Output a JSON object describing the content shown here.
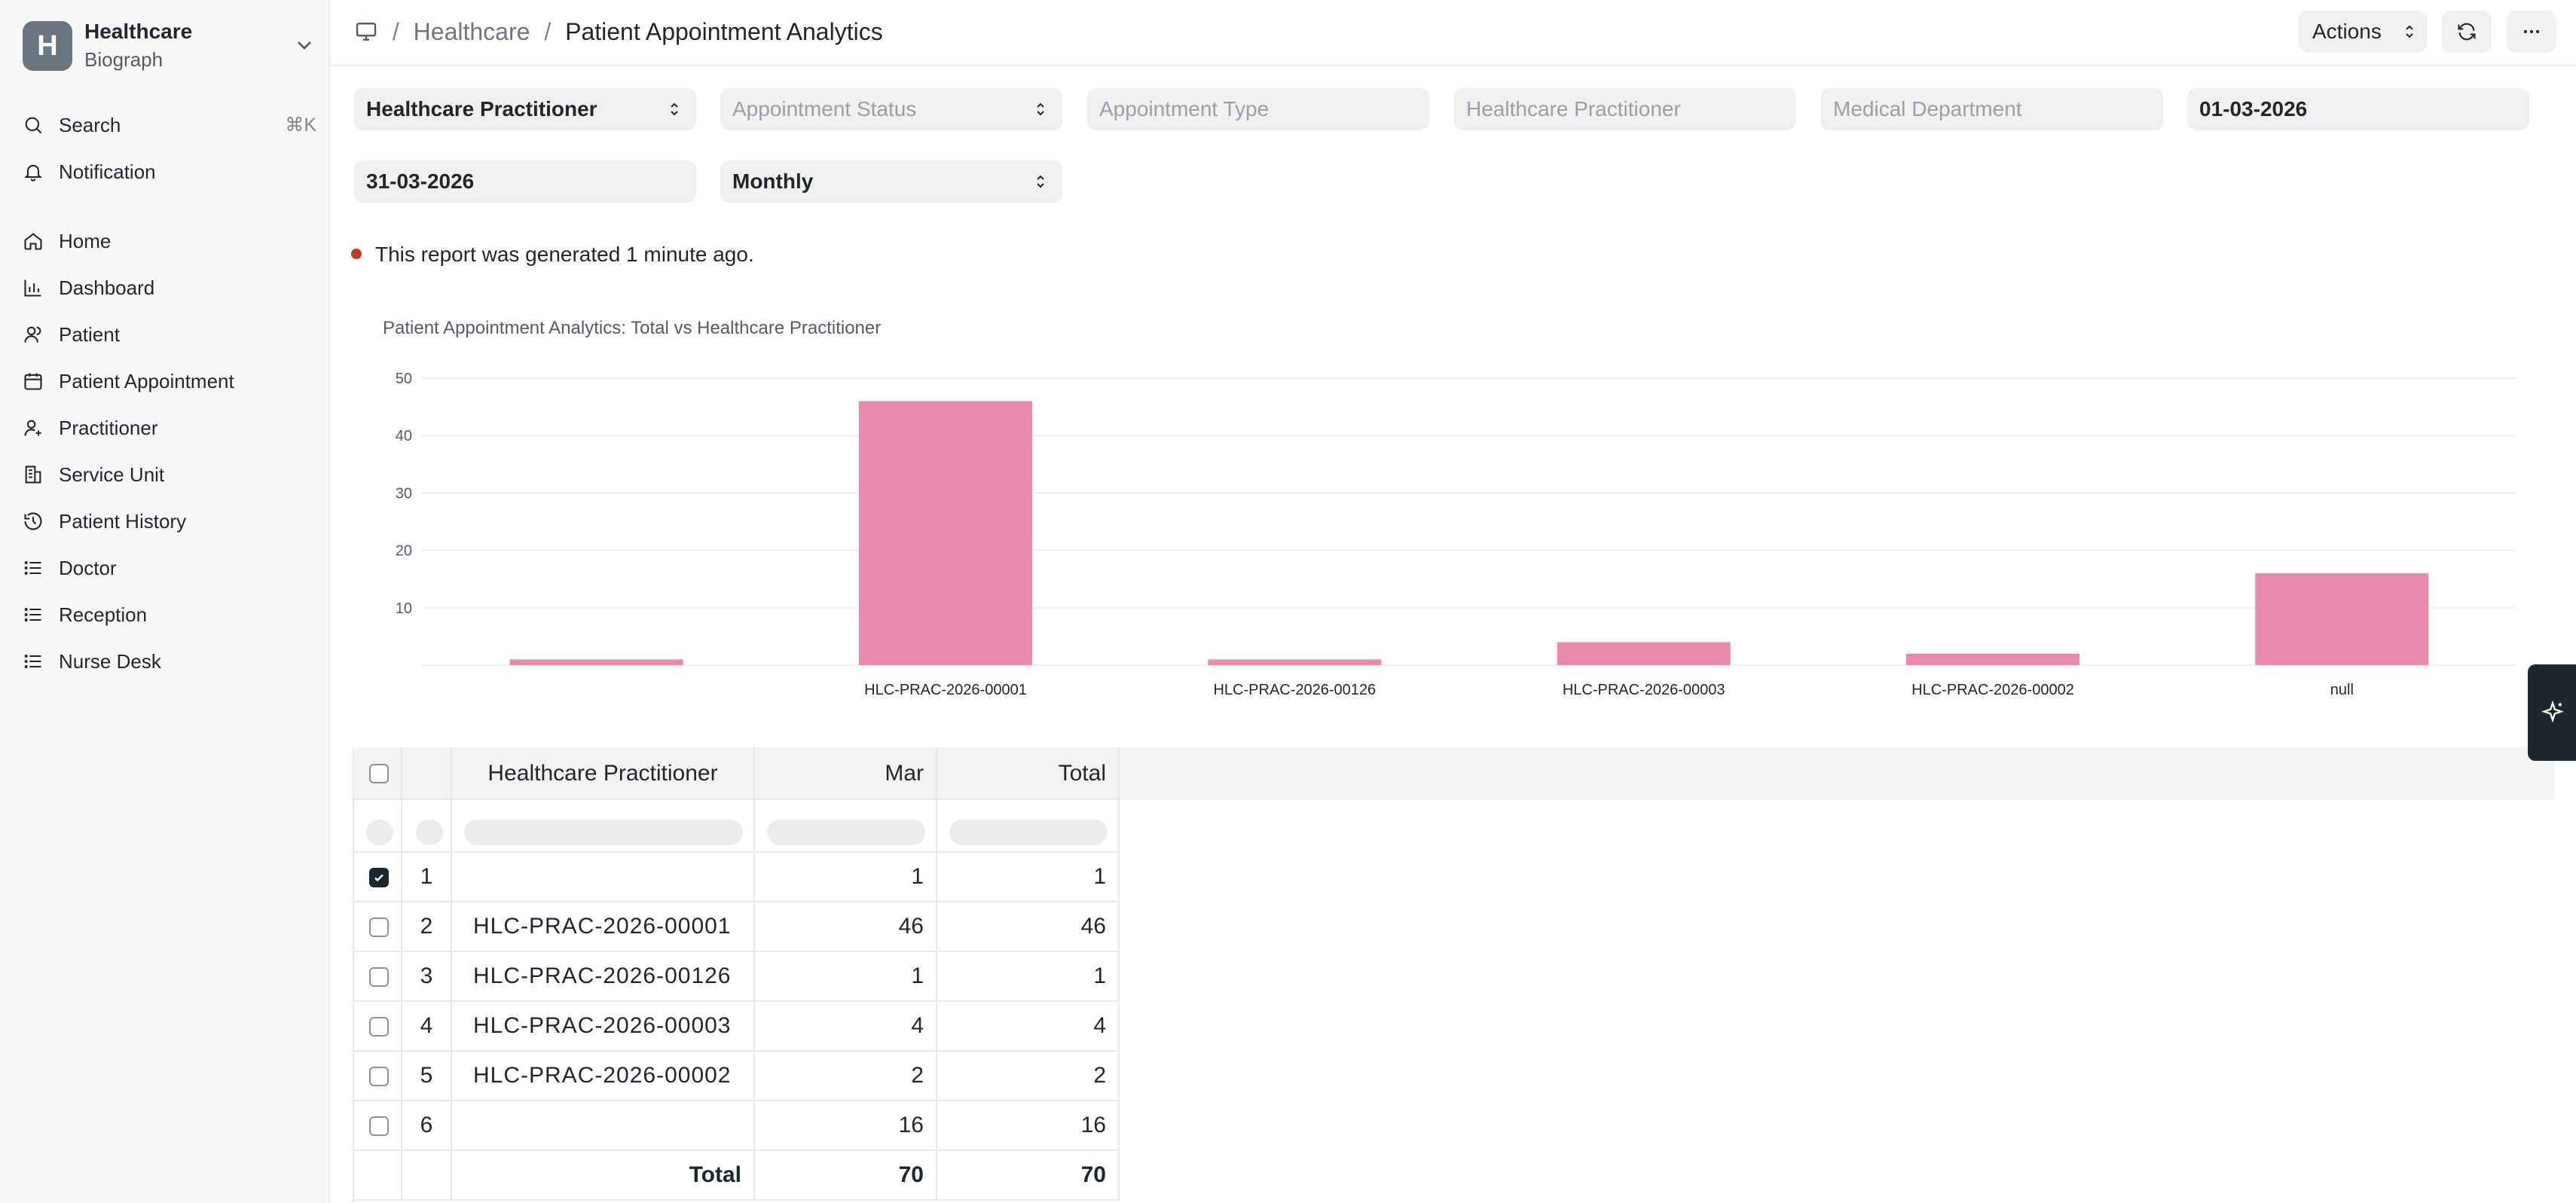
{
  "sidebar": {
    "brand_letter": "H",
    "brand_title": "Healthcare",
    "brand_subtitle": "Biograph",
    "search_label": "Search",
    "search_shortcut": "⌘K",
    "notification_label": "Notification",
    "items": [
      {
        "label": "Home",
        "icon": "home-icon"
      },
      {
        "label": "Dashboard",
        "icon": "chart-icon"
      },
      {
        "label": "Patient",
        "icon": "users-icon"
      },
      {
        "label": "Patient Appointment",
        "icon": "calendar-icon"
      },
      {
        "label": "Practitioner",
        "icon": "user-plus-icon"
      },
      {
        "label": "Service Unit",
        "icon": "building-icon"
      },
      {
        "label": "Patient History",
        "icon": "history-icon"
      },
      {
        "label": "Doctor",
        "icon": "list-icon"
      },
      {
        "label": "Reception",
        "icon": "list-icon"
      },
      {
        "label": "Nurse Desk",
        "icon": "list-icon"
      }
    ]
  },
  "header": {
    "breadcrumb_parent": "Healthcare",
    "breadcrumb_current": "Patient Appointment Analytics",
    "actions_label": "Actions"
  },
  "filters": {
    "group_by": "Healthcare Practitioner",
    "appointment_status_placeholder": "Appointment Status",
    "appointment_type_placeholder": "Appointment Type",
    "practitioner_placeholder": "Healthcare Practitioner",
    "department_placeholder": "Medical Department",
    "from_date": "01-03-2026",
    "to_date": "31-03-2026",
    "range": "Monthly"
  },
  "status_text": "This report was generated 1 minute ago.",
  "colors": {
    "bar": "#e78aae",
    "status_dot": "#c0392b"
  },
  "chart_data": {
    "type": "bar",
    "title": "Patient Appointment Analytics: Total vs Healthcare Practitioner",
    "categories": [
      "",
      "HLC-PRAC-2026-00001",
      "HLC-PRAC-2026-00126",
      "HLC-PRAC-2026-00003",
      "HLC-PRAC-2026-00002",
      "null"
    ],
    "values": [
      1,
      46,
      1,
      4,
      2,
      16
    ],
    "yticks": [
      10,
      20,
      30,
      40,
      50
    ],
    "ylim": [
      0,
      50
    ],
    "grid": true
  },
  "table": {
    "columns": [
      "Healthcare Practitioner",
      "Mar",
      "Total"
    ],
    "rows": [
      {
        "idx": "1",
        "practitioner": "",
        "mar": "1",
        "total": "1",
        "checked": true
      },
      {
        "idx": "2",
        "practitioner": "HLC-PRAC-2026-00001",
        "mar": "46",
        "total": "46",
        "checked": false
      },
      {
        "idx": "3",
        "practitioner": "HLC-PRAC-2026-00126",
        "mar": "1",
        "total": "1",
        "checked": false
      },
      {
        "idx": "4",
        "practitioner": "HLC-PRAC-2026-00003",
        "mar": "4",
        "total": "4",
        "checked": false
      },
      {
        "idx": "5",
        "practitioner": "HLC-PRAC-2026-00002",
        "mar": "2",
        "total": "2",
        "checked": false
      },
      {
        "idx": "6",
        "practitioner": "",
        "mar": "16",
        "total": "16",
        "checked": false
      }
    ],
    "total_label": "Total",
    "total_mar": "70",
    "total_total": "70"
  }
}
